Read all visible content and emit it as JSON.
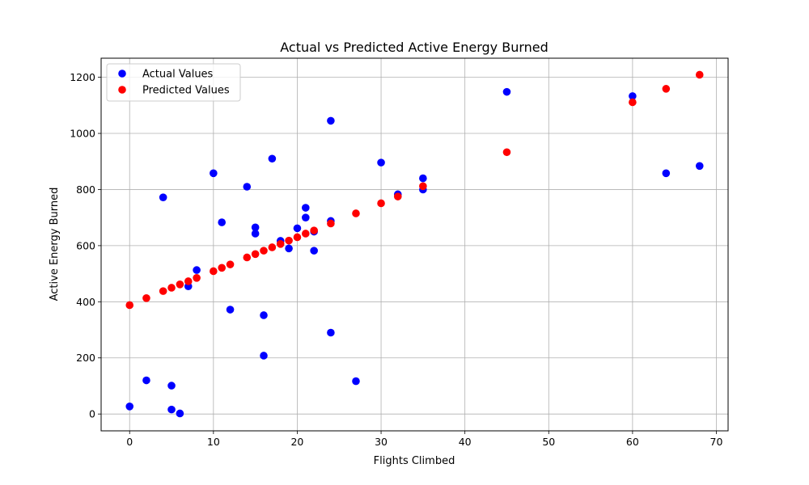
{
  "chart_data": {
    "type": "scatter",
    "title": "Actual vs Predicted Active Energy Burned",
    "xlabel": "Flights Climbed",
    "ylabel": "Active Energy Burned",
    "xlim": [
      -3.4,
      71.4
    ],
    "ylim": [
      -60,
      1268
    ],
    "xticks": [
      0,
      10,
      20,
      30,
      40,
      50,
      60,
      70
    ],
    "yticks": [
      0,
      200,
      400,
      600,
      800,
      1000,
      1200
    ],
    "grid": true,
    "legend_position": "top-left",
    "series": [
      {
        "name": "Actual Values",
        "color": "#0000ff",
        "points": [
          [
            0,
            27
          ],
          [
            2,
            120
          ],
          [
            4,
            772
          ],
          [
            5,
            101
          ],
          [
            5,
            16
          ],
          [
            6,
            2
          ],
          [
            7,
            455
          ],
          [
            8,
            513
          ],
          [
            10,
            858
          ],
          [
            11,
            683
          ],
          [
            12,
            372
          ],
          [
            14,
            810
          ],
          [
            15,
            665
          ],
          [
            15,
            643
          ],
          [
            16,
            352
          ],
          [
            16,
            208
          ],
          [
            17,
            910
          ],
          [
            18,
            617
          ],
          [
            19,
            590
          ],
          [
            20,
            662
          ],
          [
            21,
            735
          ],
          [
            21,
            700
          ],
          [
            22,
            650
          ],
          [
            22,
            582
          ],
          [
            24,
            1045
          ],
          [
            24,
            688
          ],
          [
            24,
            290
          ],
          [
            27,
            117
          ],
          [
            30,
            896
          ],
          [
            32,
            783
          ],
          [
            35,
            840
          ],
          [
            35,
            800
          ],
          [
            45,
            1148
          ],
          [
            60,
            1133
          ],
          [
            64,
            858
          ],
          [
            68,
            884
          ]
        ]
      },
      {
        "name": "Predicted Values",
        "color": "#ff0000",
        "points": [
          [
            0,
            388
          ],
          [
            2,
            413
          ],
          [
            4,
            438
          ],
          [
            5,
            450
          ],
          [
            6,
            462
          ],
          [
            7,
            473
          ],
          [
            8,
            485
          ],
          [
            10,
            509
          ],
          [
            11,
            521
          ],
          [
            12,
            533
          ],
          [
            14,
            558
          ],
          [
            15,
            570
          ],
          [
            16,
            582
          ],
          [
            17,
            594
          ],
          [
            18,
            606
          ],
          [
            19,
            618
          ],
          [
            20,
            630
          ],
          [
            21,
            643
          ],
          [
            22,
            654
          ],
          [
            24,
            679
          ],
          [
            27,
            715
          ],
          [
            30,
            751
          ],
          [
            32,
            775
          ],
          [
            35,
            812
          ],
          [
            45,
            933
          ],
          [
            60,
            1111
          ],
          [
            64,
            1159
          ],
          [
            68,
            1209
          ]
        ]
      }
    ]
  }
}
